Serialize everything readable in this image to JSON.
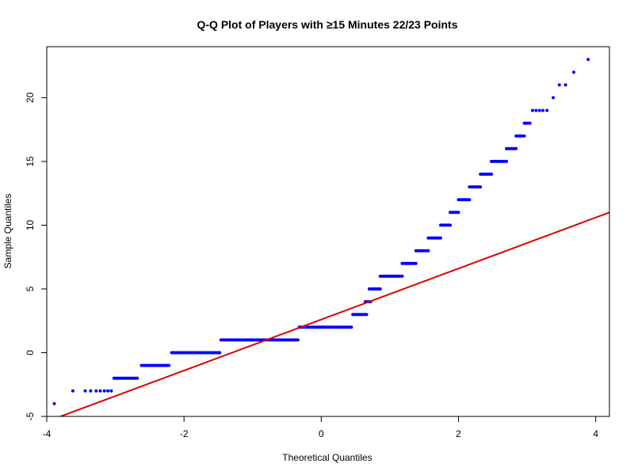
{
  "chart_data": {
    "type": "scatter",
    "title": "Q-Q Plot of Players with ≥15 Minutes 22/23 Points",
    "xlabel": "Theoretical Quantiles",
    "ylabel": "Sample Quantiles",
    "xlim": [
      -4.0,
      4.2
    ],
    "ylim": [
      -5,
      24
    ],
    "xticks": [
      -4,
      -2,
      0,
      2,
      4
    ],
    "yticks": [
      -5,
      0,
      5,
      10,
      15,
      20
    ],
    "grid": false,
    "legend": "none",
    "point_color": "#0000FF",
    "line_color": "#DD0000",
    "reference_line": {
      "slope": 2.0,
      "intercept": 2.6
    },
    "series": [
      {
        "points": [
          {
            "x": -3.89,
            "y": -4
          },
          {
            "x": -3.62,
            "y": -3
          },
          {
            "x": -3.44,
            "y": -3
          },
          {
            "x": -3.36,
            "y": -3
          },
          {
            "x": -3.28,
            "y": -3
          },
          {
            "x": -3.22,
            "y": -3
          },
          {
            "x": -3.16,
            "y": -3
          },
          {
            "x": -3.11,
            "y": -3
          },
          {
            "x": -3.06,
            "y": -3
          }
        ],
        "segments": [
          {
            "x0": -3.02,
            "x1": -2.68,
            "y": -2
          },
          {
            "x0": -2.62,
            "x1": -2.22,
            "y": -1
          },
          {
            "x0": -2.18,
            "x1": -1.48,
            "y": 0
          },
          {
            "x0": -1.46,
            "x1": -0.34,
            "y": 1
          },
          {
            "x0": -0.32,
            "x1": 0.44,
            "y": 2
          },
          {
            "x0": 0.46,
            "x1": 0.66,
            "y": 3
          },
          {
            "x0": 0.64,
            "x1": 0.72,
            "y": 4
          },
          {
            "x0": 0.7,
            "x1": 0.86,
            "y": 5
          },
          {
            "x0": 0.86,
            "x1": 1.18,
            "y": 6
          },
          {
            "x0": 1.18,
            "x1": 1.38,
            "y": 7
          },
          {
            "x0": 1.38,
            "x1": 1.56,
            "y": 8
          },
          {
            "x0": 1.56,
            "x1": 1.74,
            "y": 9
          },
          {
            "x0": 1.74,
            "x1": 1.88,
            "y": 10
          },
          {
            "x0": 1.88,
            "x1": 2.0,
            "y": 11
          },
          {
            "x0": 2.0,
            "x1": 2.16,
            "y": 12
          },
          {
            "x0": 2.16,
            "x1": 2.32,
            "y": 13
          },
          {
            "x0": 2.32,
            "x1": 2.48,
            "y": 14
          },
          {
            "x0": 2.48,
            "x1": 2.7,
            "y": 15
          },
          {
            "x0": 2.7,
            "x1": 2.84,
            "y": 16
          },
          {
            "x0": 2.84,
            "x1": 2.96,
            "y": 17
          },
          {
            "x0": 2.96,
            "x1": 3.04,
            "y": 18
          }
        ],
        "upper_points": [
          {
            "x": 3.08,
            "y": 19
          },
          {
            "x": 3.13,
            "y": 19
          },
          {
            "x": 3.18,
            "y": 19
          },
          {
            "x": 3.23,
            "y": 19
          },
          {
            "x": 3.29,
            "y": 19
          },
          {
            "x": 3.38,
            "y": 20
          },
          {
            "x": 3.47,
            "y": 21
          },
          {
            "x": 3.56,
            "y": 21
          },
          {
            "x": 3.68,
            "y": 22
          },
          {
            "x": 3.89,
            "y": 23
          }
        ]
      }
    ]
  }
}
